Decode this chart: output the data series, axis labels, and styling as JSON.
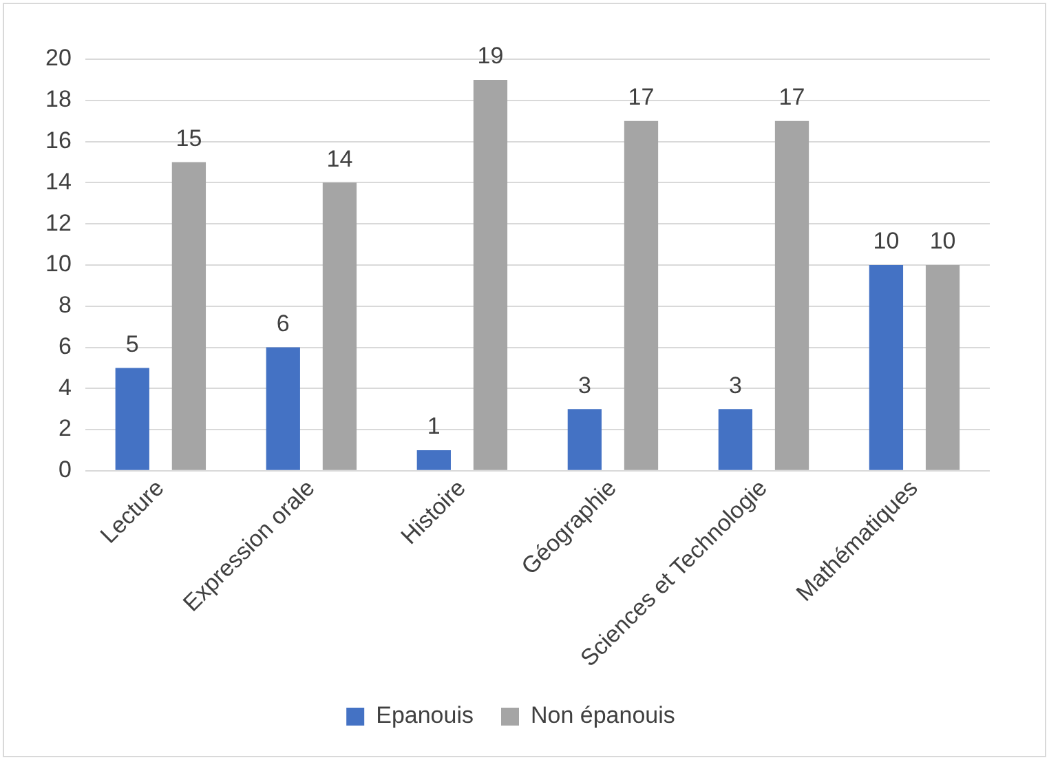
{
  "chart_data": {
    "type": "bar",
    "categories": [
      "Lecture",
      "Expression orale",
      "Histoire",
      "Géographie",
      "Sciences et Technologie",
      "Mathématiques"
    ],
    "series": [
      {
        "name": "Epanouis",
        "color": "#4472c4",
        "values": [
          5,
          6,
          1,
          3,
          3,
          10
        ]
      },
      {
        "name": "Non épanouis",
        "color": "#a5a5a5",
        "values": [
          15,
          14,
          19,
          17,
          17,
          10
        ]
      }
    ],
    "ylim": [
      0,
      20
    ],
    "yticks": [
      0,
      2,
      4,
      6,
      8,
      10,
      12,
      14,
      16,
      18,
      20
    ],
    "grid": "y",
    "legend": "bottom",
    "data_labels": true
  }
}
